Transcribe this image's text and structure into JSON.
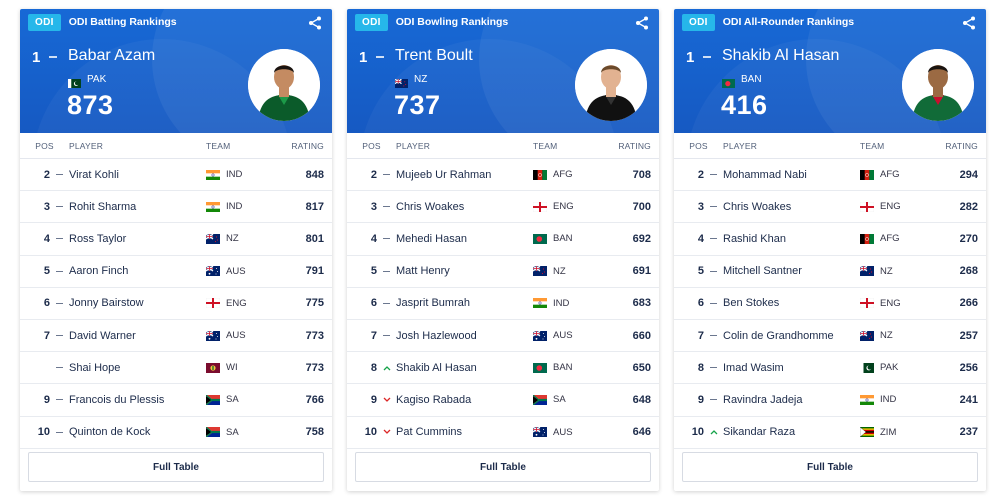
{
  "colors": {
    "hero_blue": "#1769d6",
    "badge_cyan": "#26b7ea",
    "up_green": "#16a34a",
    "down_red": "#dc2626"
  },
  "cards": [
    {
      "badge": "ODI",
      "title": "ODI Batting Rankings",
      "share_icon": "share-icon",
      "leader": {
        "rank": "1",
        "name": "Babar Azam",
        "team": "PAK",
        "rating": "873"
      },
      "headers": {
        "pos": "POS",
        "player": "PLAYER",
        "team": "TEAM",
        "rating": "RATING"
      },
      "rows": [
        {
          "pos": "2",
          "move": "none",
          "player": "Virat Kohli",
          "team": "IND",
          "rating": "848"
        },
        {
          "pos": "3",
          "move": "none",
          "player": "Rohit Sharma",
          "team": "IND",
          "rating": "817"
        },
        {
          "pos": "4",
          "move": "none",
          "player": "Ross Taylor",
          "team": "NZ",
          "rating": "801"
        },
        {
          "pos": "5",
          "move": "none",
          "player": "Aaron Finch",
          "team": "AUS",
          "rating": "791"
        },
        {
          "pos": "6",
          "move": "none",
          "player": "Jonny Bairstow",
          "team": "ENG",
          "rating": "775"
        },
        {
          "pos": "7",
          "move": "none",
          "player": "David Warner",
          "team": "AUS",
          "rating": "773"
        },
        {
          "pos": "",
          "move": "none",
          "player": "Shai Hope",
          "team": "WI",
          "rating": "773"
        },
        {
          "pos": "9",
          "move": "none",
          "player": "Francois du Plessis",
          "team": "SA",
          "rating": "766"
        },
        {
          "pos": "10",
          "move": "none",
          "player": "Quinton de Kock",
          "team": "SA",
          "rating": "758"
        }
      ],
      "full_table": "Full Table"
    },
    {
      "badge": "ODI",
      "title": "ODI Bowling Rankings",
      "share_icon": "share-icon",
      "leader": {
        "rank": "1",
        "name": "Trent Boult",
        "team": "NZ",
        "rating": "737"
      },
      "headers": {
        "pos": "POS",
        "player": "PLAYER",
        "team": "TEAM",
        "rating": "RATING"
      },
      "rows": [
        {
          "pos": "2",
          "move": "none",
          "player": "Mujeeb Ur Rahman",
          "team": "AFG",
          "rating": "708"
        },
        {
          "pos": "3",
          "move": "none",
          "player": "Chris Woakes",
          "team": "ENG",
          "rating": "700"
        },
        {
          "pos": "4",
          "move": "none",
          "player": "Mehedi Hasan",
          "team": "BAN",
          "rating": "692"
        },
        {
          "pos": "5",
          "move": "none",
          "player": "Matt Henry",
          "team": "NZ",
          "rating": "691"
        },
        {
          "pos": "6",
          "move": "none",
          "player": "Jasprit Bumrah",
          "team": "IND",
          "rating": "683"
        },
        {
          "pos": "7",
          "move": "none",
          "player": "Josh Hazlewood",
          "team": "AUS",
          "rating": "660"
        },
        {
          "pos": "8",
          "move": "up",
          "player": "Shakib Al Hasan",
          "team": "BAN",
          "rating": "650"
        },
        {
          "pos": "9",
          "move": "down",
          "player": "Kagiso Rabada",
          "team": "SA",
          "rating": "648"
        },
        {
          "pos": "10",
          "move": "down",
          "player": "Pat Cummins",
          "team": "AUS",
          "rating": "646"
        }
      ],
      "full_table": "Full Table"
    },
    {
      "badge": "ODI",
      "title": "ODI All-Rounder Rankings",
      "share_icon": "share-icon",
      "leader": {
        "rank": "1",
        "name": "Shakib Al Hasan",
        "team": "BAN",
        "rating": "416"
      },
      "headers": {
        "pos": "POS",
        "player": "PLAYER",
        "team": "TEAM",
        "rating": "RATING"
      },
      "rows": [
        {
          "pos": "2",
          "move": "none",
          "player": "Mohammad Nabi",
          "team": "AFG",
          "rating": "294"
        },
        {
          "pos": "3",
          "move": "none",
          "player": "Chris Woakes",
          "team": "ENG",
          "rating": "282"
        },
        {
          "pos": "4",
          "move": "none",
          "player": "Rashid Khan",
          "team": "AFG",
          "rating": "270"
        },
        {
          "pos": "5",
          "move": "none",
          "player": "Mitchell Santner",
          "team": "NZ",
          "rating": "268"
        },
        {
          "pos": "6",
          "move": "none",
          "player": "Ben Stokes",
          "team": "ENG",
          "rating": "266"
        },
        {
          "pos": "7",
          "move": "none",
          "player": "Colin de Grandhomme",
          "team": "NZ",
          "rating": "257"
        },
        {
          "pos": "8",
          "move": "none",
          "player": "Imad Wasim",
          "team": "PAK",
          "rating": "256"
        },
        {
          "pos": "9",
          "move": "none",
          "player": "Ravindra Jadeja",
          "team": "IND",
          "rating": "241"
        },
        {
          "pos": "10",
          "move": "up",
          "player": "Sikandar Raza",
          "team": "ZIM",
          "rating": "237"
        }
      ],
      "full_table": "Full Table"
    }
  ]
}
